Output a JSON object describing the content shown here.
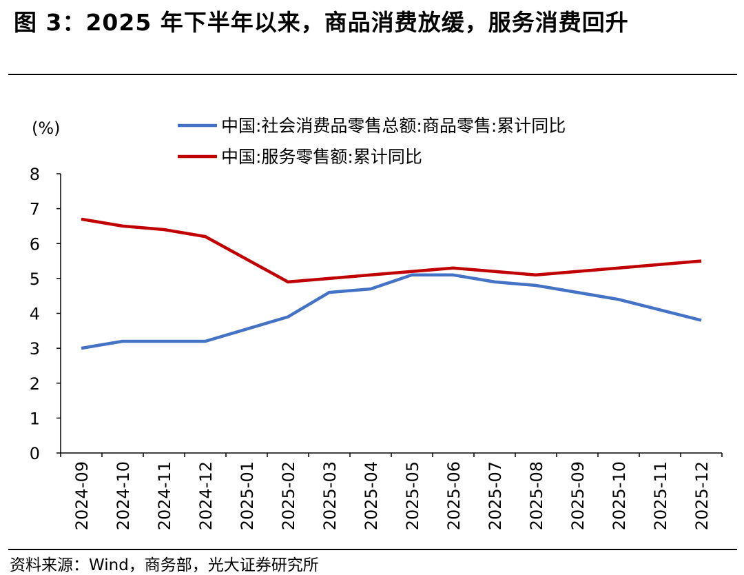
{
  "figure": {
    "title": "图 3：2025 年下半年以来，商品消费放缓，服务消费回升",
    "source": "资料来源：Wind，商务部，光大证券研究所"
  },
  "chart_data": {
    "type": "line",
    "ylabel": "(%)",
    "ylim": [
      0,
      8
    ],
    "yticks": [
      0,
      1,
      2,
      3,
      4,
      5,
      6,
      7,
      8
    ],
    "categories": [
      "2024-09",
      "2024-10",
      "2024-11",
      "2024-12",
      "2025-01",
      "2025-02",
      "2025-03",
      "2025-04",
      "2025-05",
      "2025-06",
      "2025-07",
      "2025-08",
      "2025-09",
      "2025-10",
      "2025-11",
      "2025-12"
    ],
    "legend_position": "top",
    "grid": false,
    "series": [
      {
        "name": "中国:社会消费品零售总额:商品零售:累计同比",
        "color": "#4472C4",
        "values": [
          3.0,
          3.2,
          3.2,
          3.2,
          null,
          3.9,
          4.6,
          4.7,
          5.1,
          5.1,
          4.9,
          4.8,
          4.6,
          4.4,
          4.1,
          3.8
        ]
      },
      {
        "name": "中国:服务零售额:累计同比",
        "color": "#C00000",
        "values": [
          6.7,
          6.5,
          6.4,
          6.2,
          null,
          4.9,
          5.0,
          5.1,
          5.2,
          5.3,
          5.2,
          5.1,
          5.2,
          5.3,
          5.4,
          5.5
        ]
      }
    ]
  }
}
